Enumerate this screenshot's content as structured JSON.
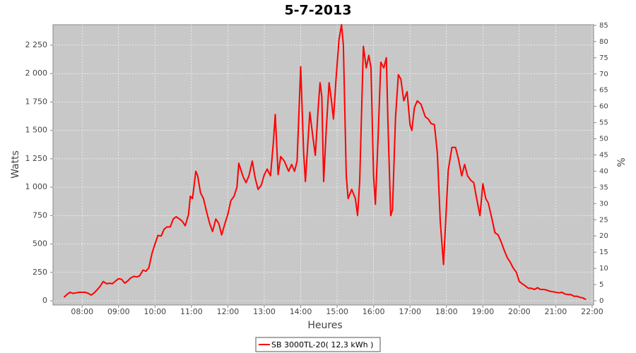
{
  "chart_data": {
    "type": "line",
    "title": "5-7-2013",
    "x_label": "Heures",
    "y_label": "Watts",
    "y2_label": "%",
    "x": [
      7.5,
      7.58,
      7.67,
      7.75,
      7.83,
      7.92,
      8,
      8.08,
      8.17,
      8.25,
      8.33,
      8.42,
      8.5,
      8.58,
      8.67,
      8.75,
      8.83,
      8.92,
      9,
      9.08,
      9.17,
      9.25,
      9.33,
      9.42,
      9.5,
      9.58,
      9.67,
      9.75,
      9.83,
      9.92,
      10,
      10.08,
      10.17,
      10.25,
      10.33,
      10.42,
      10.5,
      10.58,
      10.67,
      10.75,
      10.83,
      10.92,
      10.97,
      11.03,
      11.12,
      11.17,
      11.25,
      11.33,
      11.42,
      11.5,
      11.58,
      11.67,
      11.75,
      11.83,
      11.92,
      12,
      12.08,
      12.17,
      12.25,
      12.3,
      12.42,
      12.5,
      12.58,
      12.67,
      12.75,
      12.83,
      12.92,
      13,
      13.08,
      13.17,
      13.25,
      13.3,
      13.38,
      13.45,
      13.55,
      13.67,
      13.75,
      13.83,
      13.9,
      14,
      14.08,
      14.13,
      14.25,
      14.33,
      14.4,
      14.48,
      14.53,
      14.58,
      14.63,
      14.7,
      14.78,
      14.83,
      14.9,
      14.97,
      15.05,
      15.12,
      15.17,
      15.25,
      15.3,
      15.4,
      15.5,
      15.56,
      15.62,
      15.72,
      15.8,
      15.87,
      15.93,
      16,
      16.05,
      16.12,
      16.2,
      16.28,
      16.35,
      16.4,
      16.47,
      16.52,
      16.6,
      16.68,
      16.75,
      16.83,
      16.92,
      17,
      17.05,
      17.12,
      17.2,
      17.3,
      17.42,
      17.5,
      17.58,
      17.67,
      17.75,
      17.83,
      17.92,
      17.98,
      18.05,
      18.15,
      18.25,
      18.33,
      18.42,
      18.5,
      18.58,
      18.67,
      18.75,
      18.83,
      18.92,
      19,
      19.08,
      19.15,
      19.25,
      19.33,
      19.42,
      19.5,
      19.58,
      19.67,
      19.75,
      19.83,
      19.92,
      20,
      20.08,
      20.17,
      20.25,
      20.33,
      20.42,
      20.5,
      20.58,
      20.67,
      20.75,
      20.83,
      20.92,
      21,
      21.08,
      21.17,
      21.25,
      21.33,
      21.42,
      21.5,
      21.58,
      21.67,
      21.75,
      21.83
    ],
    "series": [
      {
        "name": "SB 3000TL-20( 12,3 kWh )",
        "color": "#ff0000",
        "values": [
          30,
          55,
          75,
          65,
          70,
          75,
          75,
          75,
          65,
          50,
          70,
          100,
          130,
          170,
          150,
          155,
          150,
          175,
          195,
          190,
          155,
          175,
          200,
          215,
          210,
          220,
          270,
          260,
          290,
          420,
          500,
          575,
          570,
          630,
          650,
          650,
          720,
          740,
          720,
          700,
          660,
          760,
          920,
          900,
          1140,
          1100,
          950,
          900,
          780,
          680,
          610,
          720,
          680,
          580,
          680,
          760,
          880,
          920,
          1000,
          1210,
          1090,
          1040,
          1100,
          1230,
          1080,
          980,
          1020,
          1110,
          1160,
          1100,
          1400,
          1640,
          1110,
          1270,
          1230,
          1140,
          1200,
          1140,
          1230,
          2060,
          1300,
          1050,
          1660,
          1450,
          1280,
          1700,
          1920,
          1800,
          1050,
          1500,
          1920,
          1800,
          1600,
          1950,
          2300,
          2430,
          2250,
          1100,
          900,
          980,
          900,
          750,
          1050,
          2240,
          2050,
          2160,
          2050,
          1100,
          850,
          1400,
          2100,
          2050,
          2140,
          1500,
          750,
          800,
          1600,
          1990,
          1950,
          1760,
          1840,
          1550,
          1500,
          1700,
          1760,
          1730,
          1620,
          1600,
          1560,
          1550,
          1300,
          700,
          320,
          700,
          1150,
          1350,
          1350,
          1250,
          1100,
          1200,
          1100,
          1060,
          1040,
          900,
          750,
          1030,
          900,
          860,
          720,
          600,
          580,
          520,
          450,
          380,
          340,
          290,
          250,
          170,
          150,
          130,
          110,
          110,
          100,
          115,
          100,
          100,
          95,
          85,
          80,
          75,
          70,
          75,
          60,
          55,
          55,
          40,
          40,
          30,
          25,
          10
        ]
      }
    ],
    "xlim": [
      7.2,
      22.04
    ],
    "xticks": [
      {
        "value": 8,
        "label": "08:00"
      },
      {
        "value": 9,
        "label": "09:00"
      },
      {
        "value": 10,
        "label": "10:00"
      },
      {
        "value": 11,
        "label": "11:00"
      },
      {
        "value": 12,
        "label": "12:00"
      },
      {
        "value": 13,
        "label": "13:00"
      },
      {
        "value": 14,
        "label": "14:00"
      },
      {
        "value": 15,
        "label": "15:00"
      },
      {
        "value": 16,
        "label": "16:00"
      },
      {
        "value": 17,
        "label": "17:00"
      },
      {
        "value": 18,
        "label": "18:00"
      },
      {
        "value": 19,
        "label": "19:00"
      },
      {
        "value": 20,
        "label": "20:00"
      },
      {
        "value": 21,
        "label": "21:00"
      },
      {
        "value": 22,
        "label": "22:00"
      }
    ],
    "ylim": [
      -37,
      2430
    ],
    "yticks": [
      0,
      250,
      500,
      750,
      {
        "value": 1000,
        "label": "1 000"
      },
      {
        "value": 1250,
        "label": "1 250"
      },
      {
        "value": 1500,
        "label": "1 500"
      },
      {
        "value": 1750,
        "label": "1 750"
      },
      {
        "value": 2000,
        "label": "2 000"
      },
      {
        "value": 2250,
        "label": "2 250"
      }
    ],
    "y2lim": [
      -1.3,
      85.2
    ],
    "y2ticks": [
      0,
      5,
      10,
      15,
      20,
      25,
      30,
      35,
      40,
      45,
      50,
      55,
      60,
      65,
      70,
      75,
      80,
      85
    ],
    "grid": true,
    "background": "#c8c8c8",
    "legend": "bottom"
  }
}
